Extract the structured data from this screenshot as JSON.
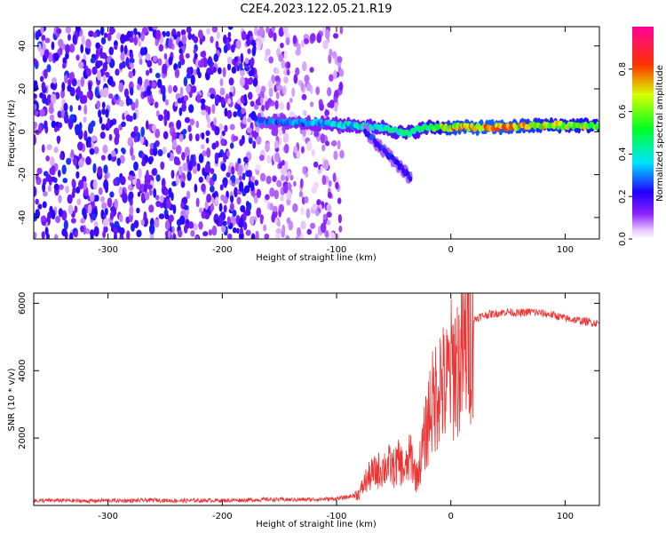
{
  "title": "C2E4.2023.122.05.21.R19",
  "chart_data": [
    {
      "type": "heatmap",
      "xlabel": "Height of straight line (km)",
      "ylabel": "Frequency (Hz)",
      "xlim": [
        -365,
        130
      ],
      "ylim": [
        -50,
        49
      ],
      "xticks": [
        -300,
        -200,
        -100,
        0,
        100
      ],
      "yticks": [
        -40,
        -20,
        0,
        20,
        40
      ],
      "colorbar": {
        "label": "Normalized spectral amplitude",
        "range": [
          0.0,
          1.0
        ],
        "ticks": [
          0.0,
          0.2,
          0.4,
          0.6,
          0.8
        ],
        "colormap": "rainbow (white-purple-blue-cyan-green-yellow-red-magenta)"
      },
      "features": [
        {
          "description": "diffuse purple noise",
          "x_range": [
            -365,
            -170
          ],
          "freq_range": [
            -50,
            49
          ],
          "amplitude": 0.15
        },
        {
          "description": "sparser noise",
          "x_range": [
            -170,
            -95
          ],
          "freq_range": [
            -50,
            49
          ],
          "amplitude": 0.08
        },
        {
          "description": "main spectral band",
          "x": [
            -170,
            -120,
            -90,
            -60,
            -40,
            -20,
            0,
            40,
            80,
            130
          ],
          "freq": [
            5,
            4,
            3,
            2,
            -1,
            2,
            2,
            2,
            3,
            3
          ],
          "amplitude": [
            0.3,
            0.35,
            0.4,
            0.45,
            0.5,
            0.5,
            0.75,
            0.8,
            0.7,
            0.65
          ]
        },
        {
          "description": "descending branch",
          "x": [
            -75,
            -60,
            -45,
            -35
          ],
          "freq": [
            0,
            -8,
            -16,
            -22
          ],
          "amplitude": 0.25
        }
      ],
      "grid": false
    },
    {
      "type": "line",
      "xlabel": "Height of straight line (km)",
      "ylabel": "SNR (10 * v/v)",
      "xlim": [
        -365,
        130
      ],
      "ylim": [
        0,
        6300
      ],
      "xticks": [
        -300,
        -200,
        -100,
        0,
        100
      ],
      "yticks": [
        2000,
        4000,
        6000
      ],
      "color": "#ee3333",
      "series": [
        {
          "x": [
            -365,
            -340,
            -320,
            -300,
            -280,
            -260,
            -240,
            -220,
            -200,
            -180,
            -160,
            -140,
            -120,
            -100,
            -90,
            -80,
            -75,
            -70,
            -65,
            -60,
            -55,
            -50,
            -45,
            -40,
            -35,
            -30,
            -25,
            -20,
            -18,
            -15,
            -10,
            -5,
            0,
            5,
            10,
            15,
            20,
            25,
            30,
            40,
            50,
            60,
            70,
            80,
            90,
            100,
            110,
            120,
            130
          ],
          "y": [
            140,
            150,
            130,
            150,
            140,
            160,
            140,
            150,
            150,
            160,
            180,
            170,
            180,
            200,
            250,
            350,
            700,
            900,
            1000,
            1100,
            1200,
            1100,
            1300,
            1000,
            1500,
            800,
            1600,
            2500,
            3000,
            3000,
            3800,
            3400,
            4000,
            4200,
            4300,
            5000,
            5500,
            5600,
            5650,
            5700,
            5750,
            5700,
            5750,
            5700,
            5650,
            5550,
            5500,
            5450,
            5400
          ]
        }
      ],
      "grid": false
    }
  ]
}
